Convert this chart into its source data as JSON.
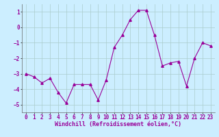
{
  "xlabel": "Windchill (Refroidissement éolien,°C)",
  "background_color": "#cceeff",
  "line_color": "#990099",
  "marker": "^",
  "x": [
    0,
    1,
    2,
    3,
    4,
    5,
    6,
    7,
    8,
    9,
    10,
    11,
    12,
    13,
    14,
    15,
    16,
    17,
    18,
    19,
    20,
    21,
    22,
    23
  ],
  "y": [
    -3.0,
    -3.2,
    -3.6,
    -3.3,
    -4.2,
    -4.9,
    -3.7,
    -3.7,
    -3.7,
    -4.7,
    -3.4,
    -1.3,
    -0.5,
    0.5,
    1.1,
    1.1,
    -0.5,
    -2.5,
    -2.3,
    -2.2,
    -3.8,
    -2.0,
    -1.0,
    -1.2
  ],
  "xlim": [
    -0.5,
    23.5
  ],
  "ylim": [
    -5.5,
    1.5
  ],
  "yticks": [
    1,
    0,
    -1,
    -2,
    -3,
    -4,
    -5
  ],
  "xticks": [
    0,
    1,
    2,
    3,
    4,
    5,
    6,
    7,
    8,
    9,
    10,
    11,
    12,
    13,
    14,
    15,
    16,
    17,
    18,
    19,
    20,
    21,
    22,
    23
  ],
  "grid_color": "#aacccc",
  "xlabel_fontsize": 6,
  "tick_fontsize": 5.5
}
